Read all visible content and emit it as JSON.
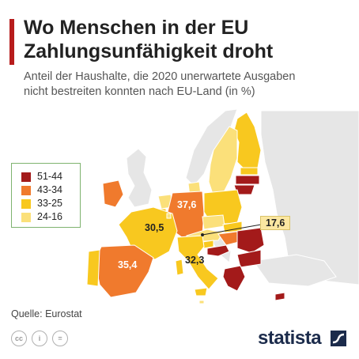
{
  "header": {
    "title_line1": "Wo Menschen in der EU",
    "title_line2": "Zahlungsunfähigkeit droht",
    "subtitle_line1": "Anteil der Haushalte, die 2020 unerwartete Ausgaben",
    "subtitle_line2": "nicht bestreiten konnten nach EU-Land (in %)"
  },
  "legend": {
    "items": [
      {
        "label": "51-44",
        "color": "#a31a1a"
      },
      {
        "label": "43-34",
        "color": "#f07a2d"
      },
      {
        "label": "33-25",
        "color": "#f8c81f"
      },
      {
        "label": "24-16",
        "color": "#fbe07a"
      }
    ]
  },
  "map_labels": {
    "de": "37,6",
    "fr": "30,5",
    "es": "35,4",
    "it": "32,3",
    "at": "17,6"
  },
  "footer": {
    "source": "Quelle: Eurostat",
    "brand": "statista",
    "cc_icons": [
      "cc-icon",
      "by-icon",
      "nd-icon"
    ]
  }
}
